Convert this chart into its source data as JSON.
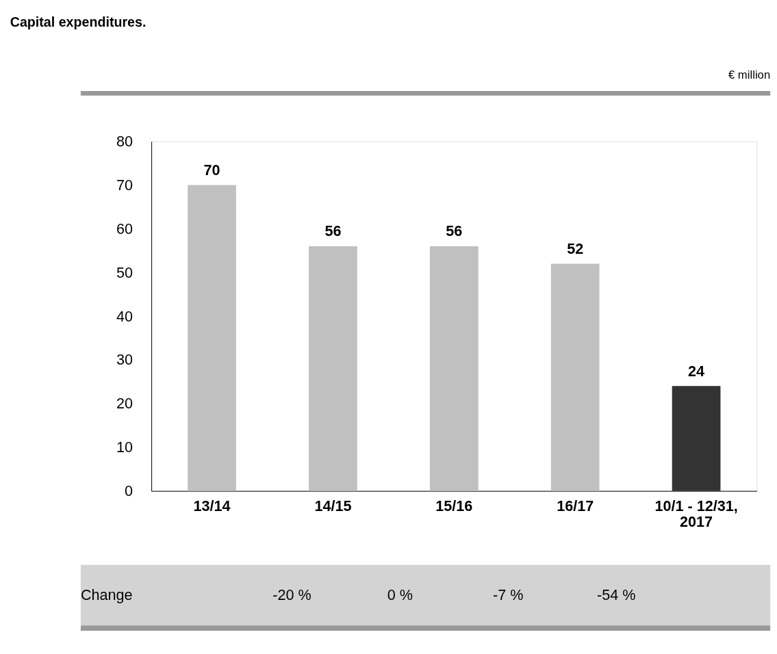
{
  "chart_data": {
    "type": "bar",
    "title": "Capital expenditures.",
    "categories": [
      "13/14",
      "14/15",
      "15/16",
      "16/17",
      "10/1 - 12/31, 2017"
    ],
    "values": [
      70,
      56,
      56,
      52,
      24
    ],
    "colors": [
      "#c0c0c0",
      "#c0c0c0",
      "#c0c0c0",
      "#c0c0c0",
      "#333333"
    ],
    "ylim": [
      0,
      80
    ],
    "yticks": [
      0,
      10,
      20,
      30,
      40,
      50,
      60,
      70,
      80
    ],
    "grid": false,
    "data_labels": true,
    "annotations": [
      "€ million",
      "Change",
      "-20 %",
      "0 %",
      "-7 %",
      "-54 %"
    ]
  }
}
